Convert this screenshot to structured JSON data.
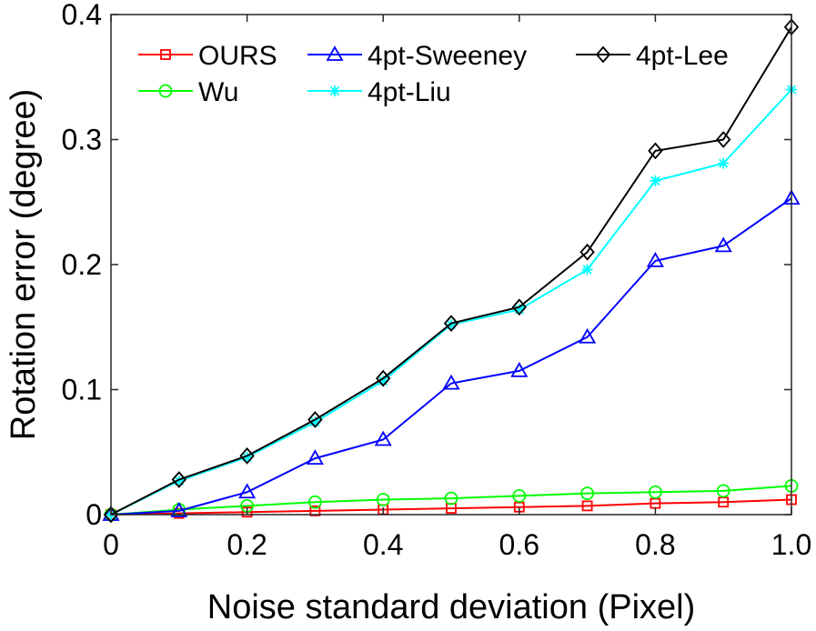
{
  "chart_data": {
    "type": "line",
    "title": "",
    "xlabel": "Noise standard deviation (Pixel)",
    "ylabel": "Rotation error (degree)",
    "xlim": [
      0,
      1.0
    ],
    "ylim": [
      0,
      0.4
    ],
    "xticks": [
      "0",
      "0.2",
      "0.4",
      "0.6",
      "0.8",
      "1.0"
    ],
    "yticks": [
      "0",
      "0.1",
      "0.2",
      "0.3",
      "0.4"
    ],
    "grid": false,
    "legend_position": "top-left",
    "x": [
      0,
      0.1,
      0.2,
      0.3,
      0.4,
      0.5,
      0.6,
      0.7,
      0.8,
      0.9,
      1.0
    ],
    "series": [
      {
        "name": "OURS",
        "color": "#ff0000",
        "marker": "square",
        "values": [
          0,
          0.001,
          0.002,
          0.003,
          0.004,
          0.005,
          0.006,
          0.007,
          0.009,
          0.01,
          0.012
        ]
      },
      {
        "name": "4pt-Sweeney",
        "color": "#0000ff",
        "marker": "triangle",
        "values": [
          0,
          0.003,
          0.018,
          0.045,
          0.06,
          0.105,
          0.115,
          0.142,
          0.203,
          0.215,
          0.253
        ]
      },
      {
        "name": "4pt-Lee",
        "color": "#000000",
        "marker": "diamond",
        "values": [
          0,
          0.028,
          0.047,
          0.076,
          0.109,
          0.153,
          0.166,
          0.21,
          0.291,
          0.3,
          0.39
        ]
      },
      {
        "name": "Wu",
        "color": "#00ff00",
        "marker": "circle",
        "values": [
          0,
          0.004,
          0.007,
          0.01,
          0.012,
          0.013,
          0.015,
          0.017,
          0.018,
          0.019,
          0.023
        ]
      },
      {
        "name": "4pt-Liu",
        "color": "#00ffff",
        "marker": "asterisk",
        "values": [
          0,
          0.027,
          0.046,
          0.074,
          0.107,
          0.152,
          0.164,
          0.196,
          0.267,
          0.281,
          0.34
        ]
      }
    ]
  }
}
